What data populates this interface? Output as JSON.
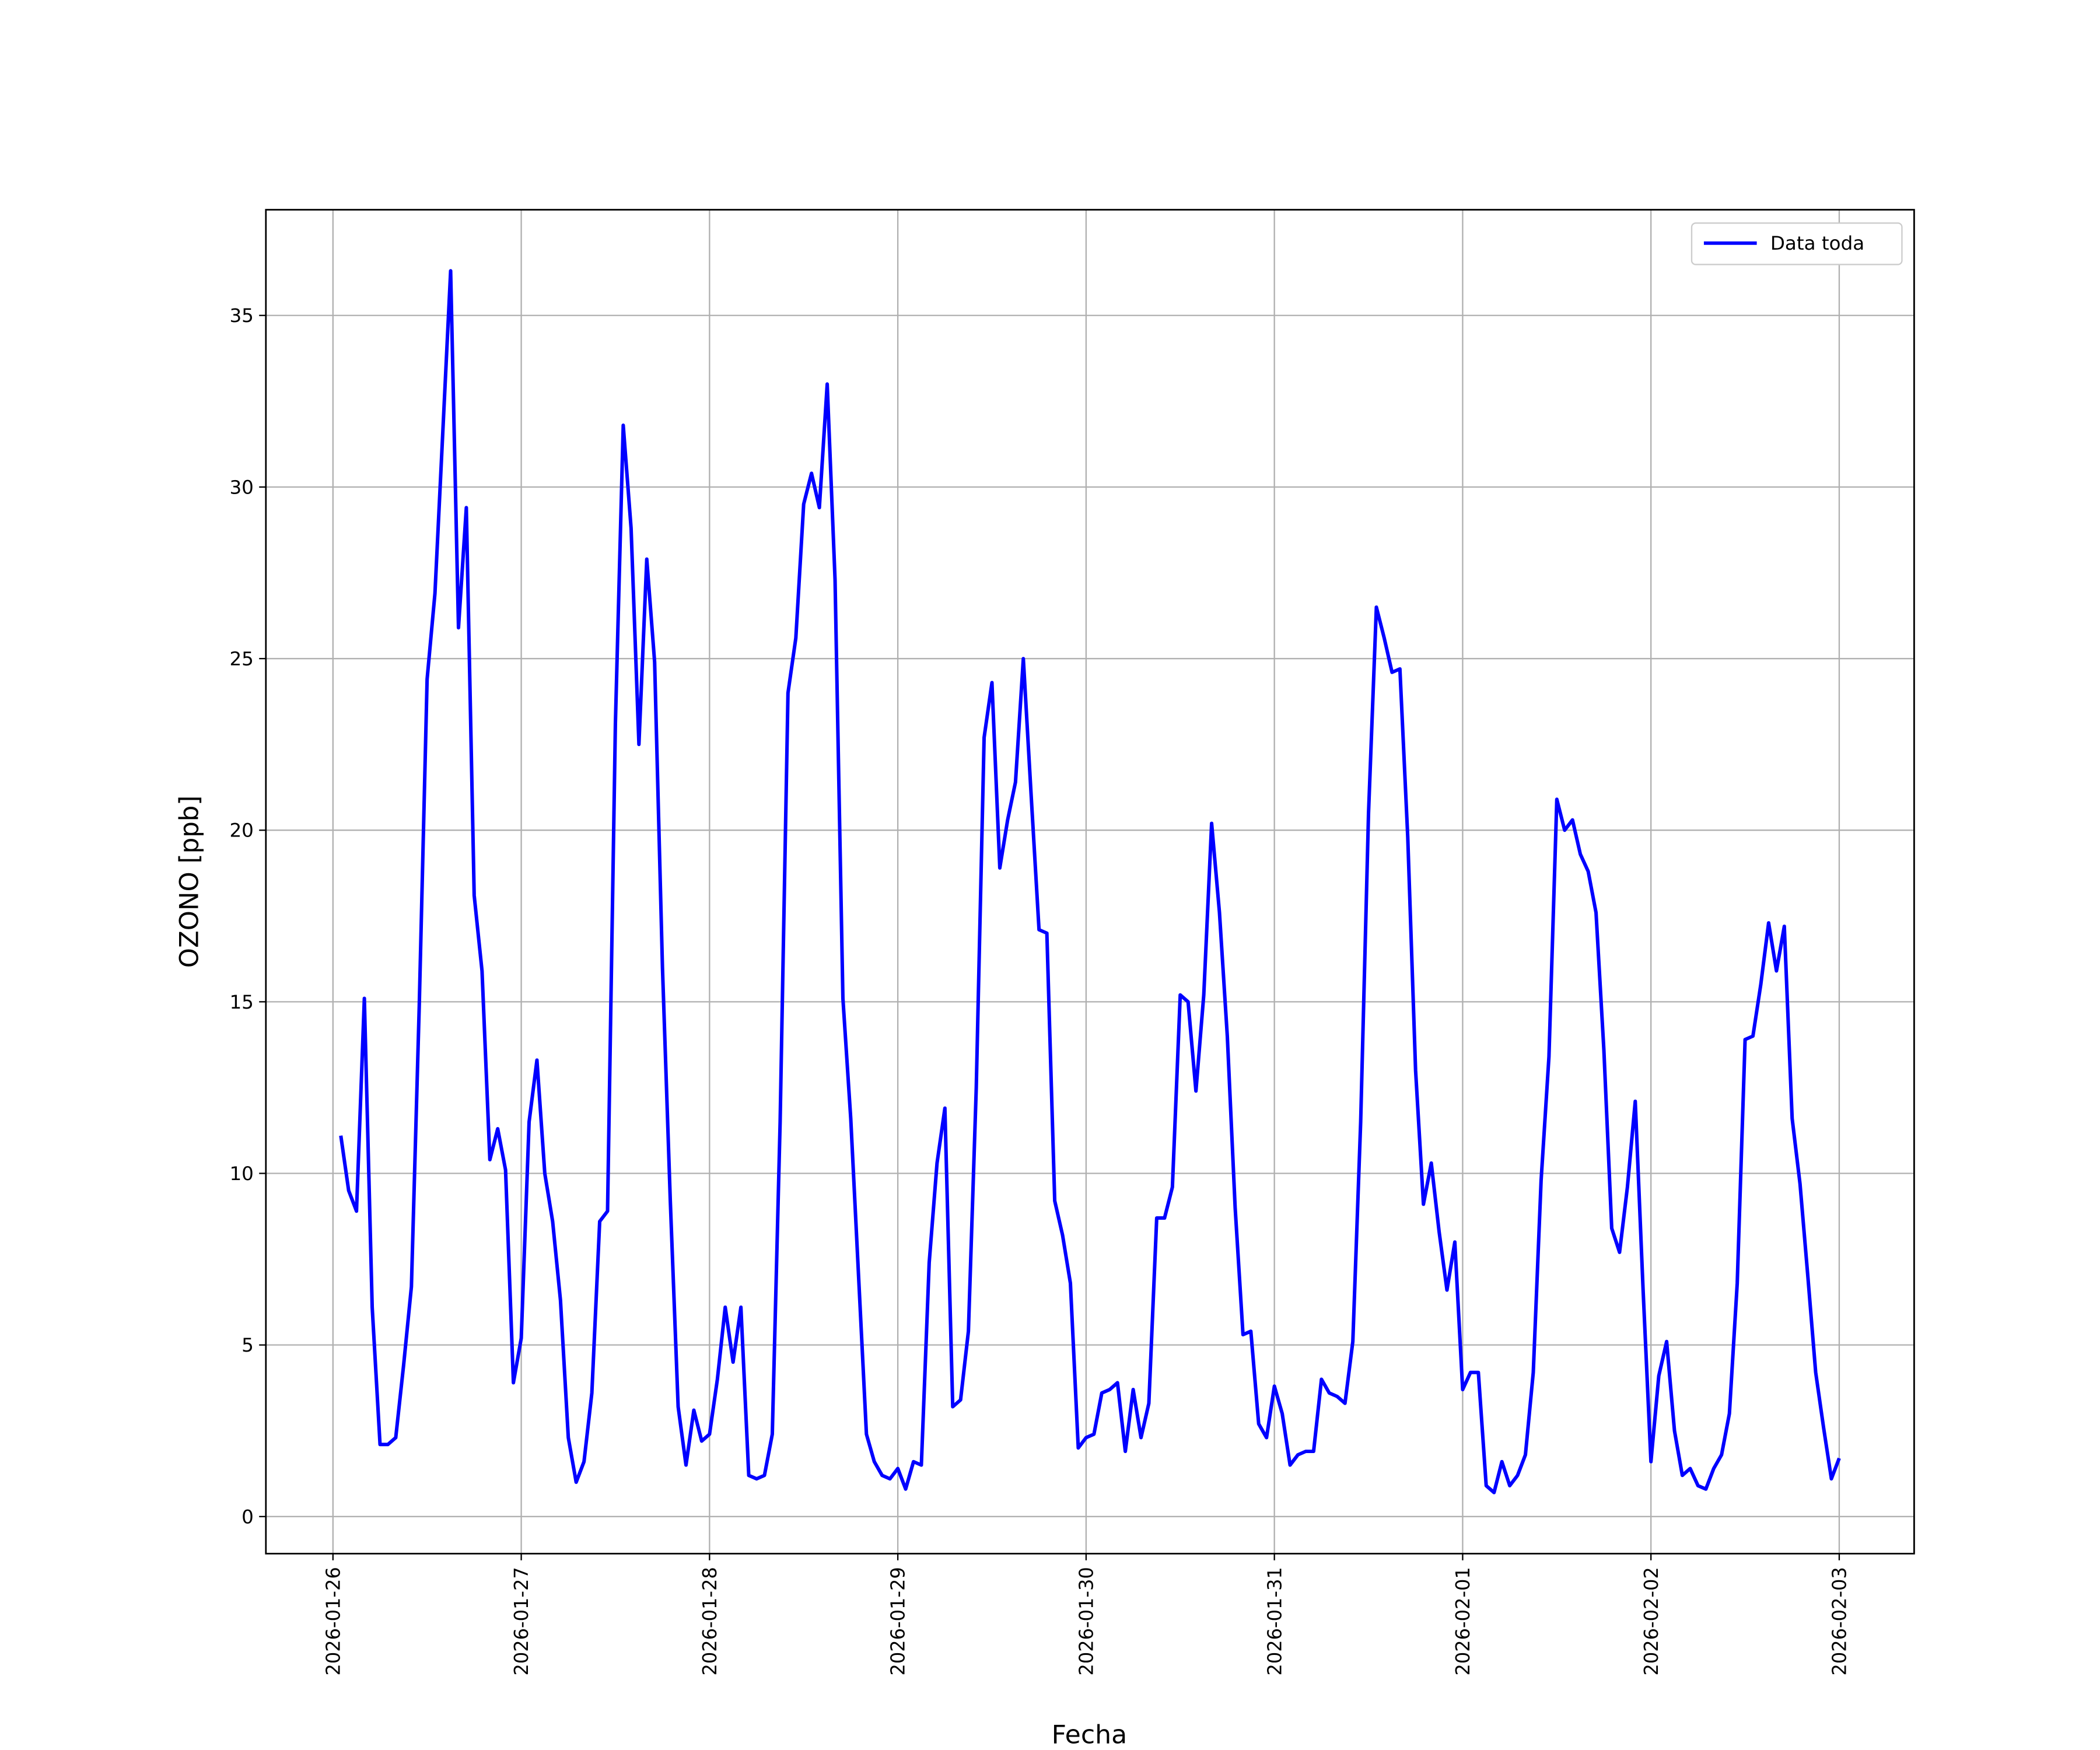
{
  "chart_data": {
    "type": "line",
    "xlabel": "Fecha",
    "ylabel": "OZONO [ppb]",
    "x": [
      "2026-01-26T01:00",
      "2026-01-26T02:00",
      "2026-01-26T03:00",
      "2026-01-26T04:00",
      "2026-01-26T05:00",
      "2026-01-26T06:00",
      "2026-01-26T07:00",
      "2026-01-26T08:00",
      "2026-01-26T09:00",
      "2026-01-26T10:00",
      "2026-01-26T11:00",
      "2026-01-26T12:00",
      "2026-01-26T13:00",
      "2026-01-26T14:00",
      "2026-01-26T15:00",
      "2026-01-26T16:00",
      "2026-01-26T17:00",
      "2026-01-26T18:00",
      "2026-01-26T19:00",
      "2026-01-26T20:00",
      "2026-01-26T21:00",
      "2026-01-26T22:00",
      "2026-01-26T23:00",
      "2026-01-27T00:00",
      "2026-01-27T01:00",
      "2026-01-27T02:00",
      "2026-01-27T03:00",
      "2026-01-27T04:00",
      "2026-01-27T05:00",
      "2026-01-27T06:00",
      "2026-01-27T07:00",
      "2026-01-27T08:00",
      "2026-01-27T09:00",
      "2026-01-27T10:00",
      "2026-01-27T11:00",
      "2026-01-27T12:00",
      "2026-01-27T13:00",
      "2026-01-27T14:00",
      "2026-01-27T15:00",
      "2026-01-27T16:00",
      "2026-01-27T17:00",
      "2026-01-27T18:00",
      "2026-01-27T19:00",
      "2026-01-27T20:00",
      "2026-01-27T21:00",
      "2026-01-27T22:00",
      "2026-01-27T23:00",
      "2026-01-28T00:00",
      "2026-01-28T01:00",
      "2026-01-28T02:00",
      "2026-01-28T03:00",
      "2026-01-28T04:00",
      "2026-01-28T05:00",
      "2026-01-28T06:00",
      "2026-01-28T07:00",
      "2026-01-28T08:00",
      "2026-01-28T09:00",
      "2026-01-28T10:00",
      "2026-01-28T11:00",
      "2026-01-28T12:00",
      "2026-01-28T13:00",
      "2026-01-28T14:00",
      "2026-01-28T15:00",
      "2026-01-28T16:00",
      "2026-01-28T17:00",
      "2026-01-28T18:00",
      "2026-01-28T19:00",
      "2026-01-28T20:00",
      "2026-01-28T21:00",
      "2026-01-28T22:00",
      "2026-01-28T23:00",
      "2026-01-29T00:00",
      "2026-01-29T01:00",
      "2026-01-29T02:00",
      "2026-01-29T03:00",
      "2026-01-29T04:00",
      "2026-01-29T05:00",
      "2026-01-29T06:00",
      "2026-01-29T07:00",
      "2026-01-29T08:00",
      "2026-01-29T09:00",
      "2026-01-29T10:00",
      "2026-01-29T11:00",
      "2026-01-29T12:00",
      "2026-01-29T13:00",
      "2026-01-29T14:00",
      "2026-01-29T15:00",
      "2026-01-29T16:00",
      "2026-01-29T17:00",
      "2026-01-29T18:00",
      "2026-01-29T19:00",
      "2026-01-29T20:00",
      "2026-01-29T21:00",
      "2026-01-29T22:00",
      "2026-01-29T23:00",
      "2026-01-30T00:00",
      "2026-01-30T01:00",
      "2026-01-30T02:00",
      "2026-01-30T03:00",
      "2026-01-30T04:00",
      "2026-01-30T05:00",
      "2026-01-30T06:00",
      "2026-01-30T07:00",
      "2026-01-30T08:00",
      "2026-01-30T09:00",
      "2026-01-30T10:00",
      "2026-01-30T11:00",
      "2026-01-30T12:00",
      "2026-01-30T13:00",
      "2026-01-30T14:00",
      "2026-01-30T15:00",
      "2026-01-30T16:00",
      "2026-01-30T17:00",
      "2026-01-30T18:00",
      "2026-01-30T19:00",
      "2026-01-30T20:00",
      "2026-01-30T21:00",
      "2026-01-30T22:00",
      "2026-01-30T23:00",
      "2026-01-31T00:00",
      "2026-01-31T01:00",
      "2026-01-31T02:00",
      "2026-01-31T03:00",
      "2026-01-31T04:00",
      "2026-01-31T05:00",
      "2026-01-31T06:00",
      "2026-01-31T07:00",
      "2026-01-31T08:00",
      "2026-01-31T09:00",
      "2026-01-31T10:00",
      "2026-01-31T11:00",
      "2026-01-31T12:00",
      "2026-01-31T13:00",
      "2026-01-31T14:00",
      "2026-01-31T15:00",
      "2026-01-31T16:00",
      "2026-01-31T17:00",
      "2026-01-31T18:00",
      "2026-01-31T19:00",
      "2026-01-31T20:00",
      "2026-01-31T21:00",
      "2026-01-31T22:00",
      "2026-01-31T23:00",
      "2026-02-01T00:00",
      "2026-02-01T01:00",
      "2026-02-01T02:00",
      "2026-02-01T03:00",
      "2026-02-01T04:00",
      "2026-02-01T05:00",
      "2026-02-01T06:00",
      "2026-02-01T07:00",
      "2026-02-01T08:00",
      "2026-02-01T09:00",
      "2026-02-01T10:00",
      "2026-02-01T11:00",
      "2026-02-01T12:00",
      "2026-02-01T13:00",
      "2026-02-01T14:00",
      "2026-02-01T15:00",
      "2026-02-01T16:00",
      "2026-02-01T17:00",
      "2026-02-01T18:00",
      "2026-02-01T19:00",
      "2026-02-01T20:00",
      "2026-02-01T21:00",
      "2026-02-01T22:00",
      "2026-02-01T23:00",
      "2026-02-02T00:00",
      "2026-02-02T01:00",
      "2026-02-02T02:00",
      "2026-02-02T03:00",
      "2026-02-02T04:00",
      "2026-02-02T05:00",
      "2026-02-02T06:00",
      "2026-02-02T07:00",
      "2026-02-02T08:00",
      "2026-02-02T09:00",
      "2026-02-02T10:00",
      "2026-02-02T11:00",
      "2026-02-02T12:00",
      "2026-02-02T13:00",
      "2026-02-02T14:00",
      "2026-02-02T15:00",
      "2026-02-02T16:00",
      "2026-02-02T17:00",
      "2026-02-02T18:00",
      "2026-02-02T19:00",
      "2026-02-02T20:00",
      "2026-02-02T21:00",
      "2026-02-02T22:00",
      "2026-02-02T23:00",
      "2026-02-03T00:00"
    ],
    "series": [
      {
        "name": "Data toda",
        "color": "#0000ff",
        "values": [
          11.1,
          9.5,
          8.9,
          15.1,
          6.1,
          2.1,
          2.1,
          2.3,
          4.4,
          6.7,
          14.9,
          24.4,
          26.9,
          31.6,
          36.3,
          25.9,
          29.4,
          18.1,
          15.9,
          10.4,
          11.3,
          10.1,
          3.9,
          5.2,
          11.5,
          13.3,
          10.0,
          8.6,
          6.3,
          2.3,
          1.0,
          1.6,
          3.6,
          8.6,
          8.9,
          23.1,
          31.8,
          28.8,
          22.5,
          27.9,
          24.9,
          16.0,
          9.2,
          3.2,
          1.5,
          3.1,
          2.2,
          2.4,
          4.0,
          6.1,
          4.5,
          6.1,
          1.2,
          1.1,
          1.2,
          2.4,
          11.5,
          24.0,
          25.6,
          29.5,
          30.4,
          29.4,
          33.0,
          27.3,
          15.1,
          11.6,
          7.0,
          2.4,
          1.6,
          1.2,
          1.1,
          1.4,
          0.8,
          1.6,
          1.5,
          7.4,
          10.3,
          11.9,
          3.2,
          3.4,
          5.4,
          12.5,
          22.7,
          24.3,
          18.9,
          20.3,
          21.4,
          25.0,
          21.0,
          17.1,
          17.0,
          9.2,
          8.2,
          6.8,
          2.0,
          2.3,
          2.4,
          3.6,
          3.7,
          3.9,
          1.9,
          3.7,
          2.3,
          3.3,
          8.7,
          8.7,
          9.6,
          15.2,
          15.0,
          12.4,
          15.2,
          20.2,
          17.6,
          14.0,
          9.0,
          5.3,
          5.4,
          2.7,
          2.3,
          3.8,
          3.0,
          1.5,
          1.8,
          1.9,
          1.9,
          4.0,
          3.6,
          3.5,
          3.3,
          5.1,
          11.5,
          20.5,
          26.5,
          25.6,
          24.6,
          24.7,
          19.8,
          13.0,
          9.1,
          10.3,
          8.3,
          6.6,
          8.0,
          3.7,
          4.2,
          4.2,
          0.9,
          0.7,
          1.6,
          0.9,
          1.2,
          1.8,
          4.2,
          9.8,
          13.4,
          20.9,
          20.0,
          20.3,
          19.3,
          18.8,
          17.6,
          13.6,
          8.4,
          7.7,
          9.6,
          12.1,
          6.6,
          1.6,
          4.1,
          5.1,
          2.5,
          1.2,
          1.4,
          0.9,
          0.8,
          1.4,
          1.8,
          3.0,
          6.8,
          13.9,
          14.0,
          15.5,
          17.3,
          15.9,
          17.2,
          11.6,
          9.7,
          7.0,
          4.2,
          2.6,
          1.1,
          1.7
        ]
      }
    ],
    "xlim": [
      "2026-01-25T15:27",
      "2026-02-03T09:33"
    ],
    "xticks": [
      "2026-01-26",
      "2026-01-27",
      "2026-01-28",
      "2026-01-29",
      "2026-01-30",
      "2026-01-31",
      "2026-02-01",
      "2026-02-02",
      "2026-02-03"
    ],
    "ylim": [
      -1.08,
      38.08
    ],
    "yticks": [
      0,
      5,
      10,
      15,
      20,
      25,
      30,
      35
    ],
    "grid": true,
    "legend": "upper right"
  }
}
